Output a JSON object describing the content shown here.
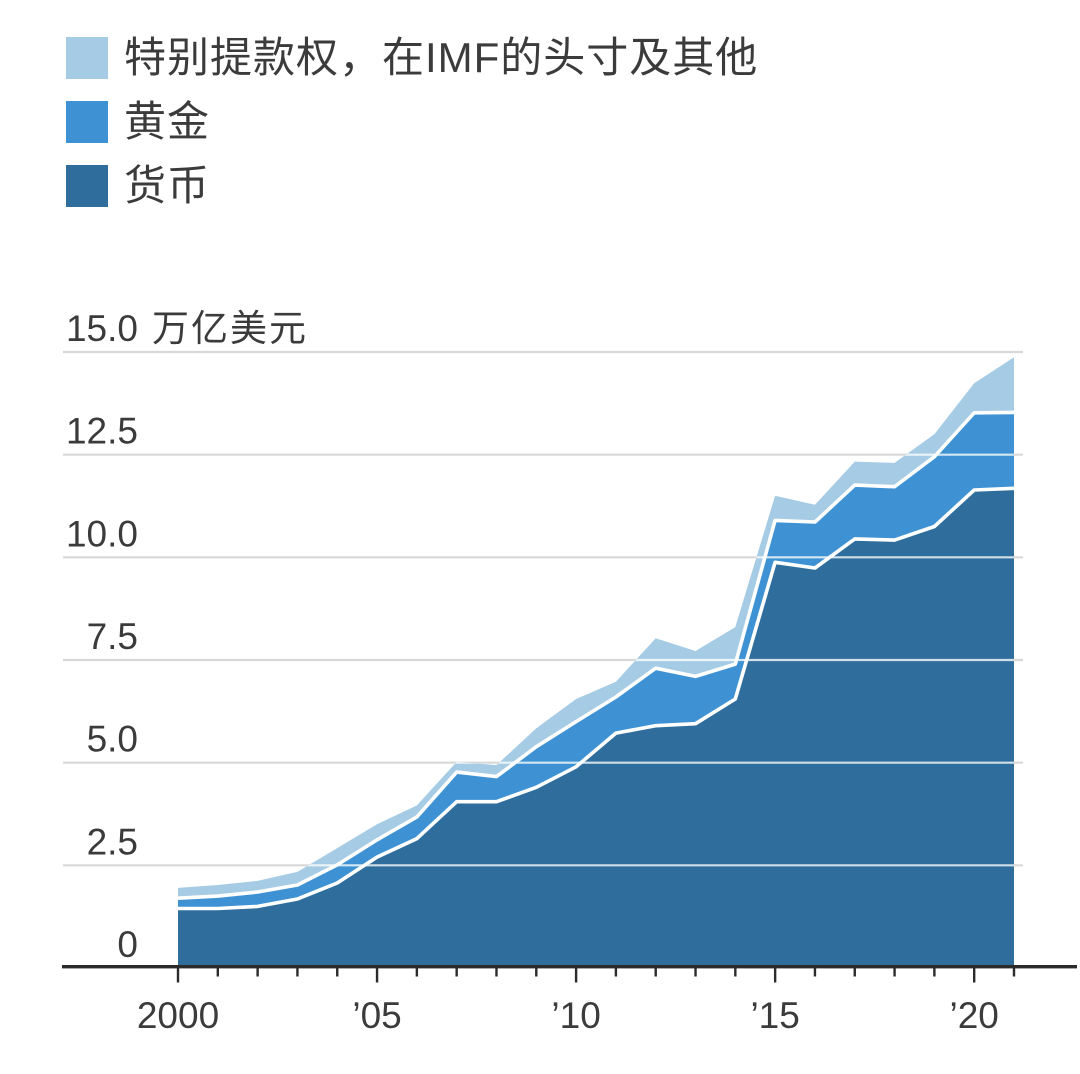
{
  "legend": {
    "items": [
      {
        "key": "sdr",
        "label": "特别提款权，在IMF的头寸及其他",
        "color": "#A6CBE5"
      },
      {
        "key": "gold",
        "label": "黄金",
        "color": "#3E92D3"
      },
      {
        "key": "currency",
        "label": "货币",
        "color": "#2F6D9C"
      }
    ]
  },
  "y_axis": {
    "top_tick_label": "15.0",
    "unit_label": "万亿美元"
  },
  "chart_data": {
    "type": "area",
    "stacked": true,
    "title": "",
    "xlabel": "",
    "ylabel": "万亿美元",
    "ylim": [
      0,
      15
    ],
    "grid": true,
    "legend_position": "top-left",
    "x": [
      2000,
      2001,
      2002,
      2003,
      2004,
      2005,
      2006,
      2007,
      2008,
      2009,
      2010,
      2011,
      2012,
      2013,
      2014,
      2015,
      2016,
      2017,
      2018,
      2019,
      2020,
      2021
    ],
    "series": [
      {
        "name": "货币",
        "color": "#2F6D9C",
        "values": [
          1.45,
          1.45,
          1.5,
          1.68,
          2.07,
          2.7,
          3.15,
          4.05,
          4.05,
          4.4,
          4.9,
          5.72,
          5.9,
          5.95,
          6.55,
          9.88,
          9.74,
          10.45,
          10.42,
          10.75,
          11.64,
          11.68
        ]
      },
      {
        "name": "黄金",
        "color": "#3E92D3",
        "values": [
          0.25,
          0.3,
          0.35,
          0.34,
          0.44,
          0.42,
          0.53,
          0.72,
          0.61,
          0.99,
          1.1,
          0.88,
          1.4,
          1.15,
          0.85,
          1.02,
          1.12,
          1.31,
          1.3,
          1.7,
          1.88,
          1.85
        ]
      },
      {
        "name": "特别提款权，在IMF的头寸及其他",
        "color": "#A6CBE5",
        "values": [
          0.25,
          0.27,
          0.27,
          0.32,
          0.41,
          0.38,
          0.28,
          0.25,
          0.28,
          0.45,
          0.55,
          0.37,
          0.73,
          0.62,
          0.9,
          0.6,
          0.42,
          0.57,
          0.58,
          0.55,
          0.72,
          1.34
        ]
      }
    ],
    "y_ticks": [
      {
        "value": 0,
        "label": "0"
      },
      {
        "value": 2.5,
        "label": "2.5"
      },
      {
        "value": 5,
        "label": "5.0"
      },
      {
        "value": 7.5,
        "label": "7.5"
      },
      {
        "value": 10,
        "label": "10.0"
      },
      {
        "value": 12.5,
        "label": "12.5"
      },
      {
        "value": 15,
        "label": "15.0"
      }
    ],
    "x_tick_labels": [
      {
        "year": 2000,
        "label": "2000"
      },
      {
        "year": 2005,
        "label": "’05"
      },
      {
        "year": 2010,
        "label": "’10"
      },
      {
        "year": 2015,
        "label": "’15"
      },
      {
        "year": 2020,
        "label": "’20"
      }
    ]
  }
}
